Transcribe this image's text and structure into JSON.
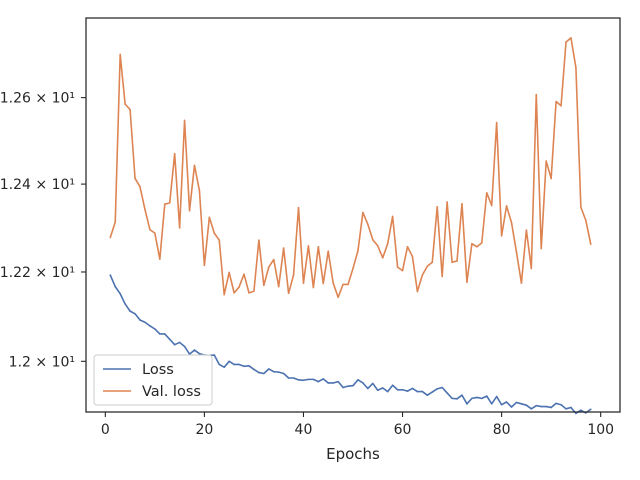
{
  "chart_data": {
    "type": "line",
    "title": "",
    "xlabel": "Epochs",
    "ylabel": "",
    "yscale": "log",
    "xlim": [
      -3.9,
      103.9
    ],
    "ylim": [
      11.888,
      12.787
    ],
    "grid": false,
    "legend_position": "lower-left",
    "x_ticks": [
      0,
      20,
      40,
      60,
      80,
      100
    ],
    "y_ticks": [
      {
        "value": 12.0,
        "label": "1.2 × 10¹"
      },
      {
        "value": 12.2,
        "label": "1.22 × 10¹"
      },
      {
        "value": 12.4,
        "label": "1.24 × 10¹"
      },
      {
        "value": 12.6,
        "label": "1.26 × 10¹"
      }
    ],
    "x": [
      1,
      2,
      3,
      4,
      5,
      6,
      7,
      8,
      9,
      10,
      11,
      12,
      13,
      14,
      15,
      16,
      17,
      18,
      19,
      20,
      21,
      22,
      23,
      24,
      25,
      26,
      27,
      28,
      29,
      30,
      31,
      32,
      33,
      34,
      35,
      36,
      37,
      38,
      39,
      40,
      41,
      42,
      43,
      44,
      45,
      46,
      47,
      48,
      49,
      50,
      51,
      52,
      53,
      54,
      55,
      56,
      57,
      58,
      59,
      60,
      61,
      62,
      63,
      64,
      65,
      66,
      67,
      68,
      69,
      70,
      71,
      72,
      73,
      74,
      75,
      76,
      77,
      78,
      79,
      80,
      81,
      82,
      83,
      84,
      85,
      86,
      87,
      88,
      89,
      90,
      91,
      92,
      93,
      94,
      95,
      96,
      97,
      98
    ],
    "series": [
      {
        "name": "Loss",
        "color": "#4c72b0",
        "values": [
          12.193,
          12.167,
          12.151,
          12.128,
          12.112,
          12.106,
          12.092,
          12.087,
          12.079,
          12.072,
          12.061,
          12.061,
          12.049,
          12.037,
          12.042,
          12.033,
          12.016,
          12.025,
          12.017,
          12.014,
          12.013,
          12.014,
          11.993,
          11.987,
          12.0,
          11.993,
          11.993,
          11.989,
          11.99,
          11.982,
          11.975,
          11.973,
          11.983,
          11.977,
          11.976,
          11.973,
          11.963,
          11.963,
          11.959,
          11.958,
          11.96,
          11.96,
          11.955,
          11.961,
          11.952,
          11.952,
          11.955,
          11.942,
          11.945,
          11.946,
          11.959,
          11.952,
          11.94,
          11.951,
          11.936,
          11.941,
          11.933,
          11.947,
          11.937,
          11.937,
          11.934,
          11.94,
          11.933,
          11.933,
          11.925,
          11.932,
          11.939,
          11.942,
          11.93,
          11.918,
          11.917,
          11.925,
          11.906,
          11.918,
          11.92,
          11.918,
          11.923,
          11.906,
          11.922,
          11.904,
          11.91,
          11.899,
          11.909,
          11.906,
          11.903,
          11.895,
          11.902,
          11.9,
          11.9,
          11.898,
          11.907,
          11.904,
          11.895,
          11.898,
          11.885,
          11.892,
          11.886,
          11.894
        ]
      },
      {
        "name": "Val. loss",
        "color": "#dd8452",
        "values": [
          12.278,
          12.313,
          12.701,
          12.585,
          12.572,
          12.413,
          12.394,
          12.342,
          12.296,
          12.288,
          12.229,
          12.354,
          12.357,
          12.47,
          12.3,
          12.547,
          12.339,
          12.443,
          12.385,
          12.215,
          12.324,
          12.288,
          12.272,
          12.149,
          12.199,
          12.153,
          12.166,
          12.195,
          12.153,
          12.157,
          12.272,
          12.17,
          12.211,
          12.228,
          12.167,
          12.254,
          12.152,
          12.193,
          12.346,
          12.175,
          12.259,
          12.165,
          12.257,
          12.174,
          12.247,
          12.175,
          12.143,
          12.172,
          12.172,
          12.208,
          12.248,
          12.335,
          12.308,
          12.273,
          12.259,
          12.232,
          12.264,
          12.326,
          12.211,
          12.203,
          12.257,
          12.235,
          12.156,
          12.193,
          12.213,
          12.222,
          12.348,
          12.19,
          12.359,
          12.222,
          12.225,
          12.355,
          12.177,
          12.264,
          12.257,
          12.266,
          12.38,
          12.351,
          12.542,
          12.282,
          12.35,
          12.312,
          12.245,
          12.175,
          12.295,
          12.208,
          12.607,
          12.253,
          12.453,
          12.413,
          12.591,
          12.581,
          12.73,
          12.74,
          12.67,
          12.347,
          12.317,
          12.263
        ]
      }
    ]
  }
}
